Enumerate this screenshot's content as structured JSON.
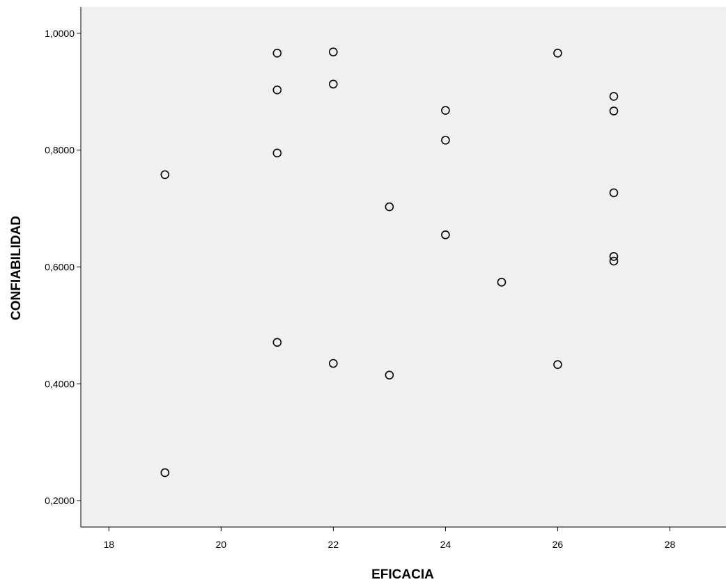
{
  "chart_data": {
    "type": "scatter",
    "title": "",
    "xlabel": "EFICACIA",
    "ylabel": "CONFIABILIDAD",
    "xlim": [
      17.5,
      29
    ],
    "ylim": [
      0.155,
      1.045
    ],
    "x_ticks": [
      18,
      20,
      22,
      24,
      26,
      28
    ],
    "x_tick_labels": [
      "18",
      "20",
      "22",
      "24",
      "26",
      "28"
    ],
    "y_ticks": [
      0.2,
      0.4,
      0.6,
      0.8,
      1.0
    ],
    "y_tick_labels": [
      "0,2000",
      "0,4000",
      "0,6000",
      "0,8000",
      "1,0000"
    ],
    "grid": false,
    "legend": "none",
    "colors": {
      "plot_background": "#f0f0f0",
      "marker_stroke": "#000000",
      "axis": "#000000"
    },
    "marker": "open-circle",
    "points": [
      {
        "x": 19,
        "y": 0.758
      },
      {
        "x": 19,
        "y": 0.248
      },
      {
        "x": 21,
        "y": 0.966
      },
      {
        "x": 21,
        "y": 0.903
      },
      {
        "x": 21,
        "y": 0.795
      },
      {
        "x": 21,
        "y": 0.471
      },
      {
        "x": 22,
        "y": 0.968
      },
      {
        "x": 22,
        "y": 0.913
      },
      {
        "x": 22,
        "y": 0.435
      },
      {
        "x": 23,
        "y": 0.703
      },
      {
        "x": 23,
        "y": 0.415
      },
      {
        "x": 24,
        "y": 0.868
      },
      {
        "x": 24,
        "y": 0.817
      },
      {
        "x": 24,
        "y": 0.655
      },
      {
        "x": 25,
        "y": 0.574
      },
      {
        "x": 26,
        "y": 0.966
      },
      {
        "x": 26,
        "y": 0.433
      },
      {
        "x": 27,
        "y": 0.892
      },
      {
        "x": 27,
        "y": 0.867
      },
      {
        "x": 27,
        "y": 0.727
      },
      {
        "x": 27,
        "y": 0.618
      },
      {
        "x": 27,
        "y": 0.61
      }
    ]
  }
}
